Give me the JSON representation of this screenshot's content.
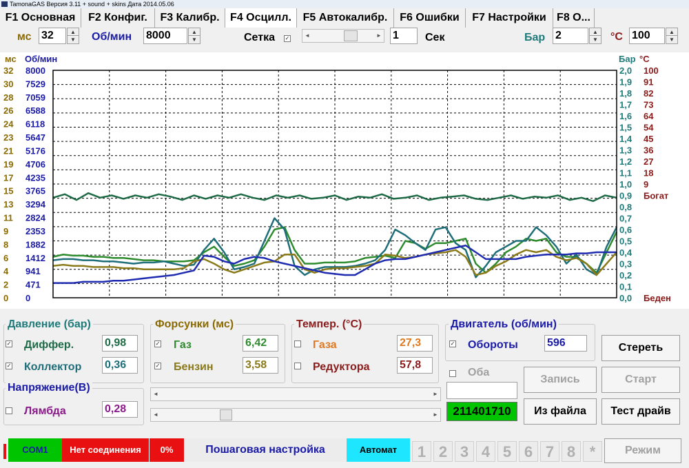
{
  "titlebar": {
    "text": "TamonaGAS  Версия 3.11 + sound + skins  Дата 2014.05.06"
  },
  "tabs": [
    "F1 Основная",
    "F2 Конфиг.",
    "F3 Калибр.",
    "F4 Осцилл.",
    "F5 Автокалибр.",
    "F6 Ошибки",
    "F7 Настройки",
    "F8 О..."
  ],
  "toolbar": {
    "ms_label": "мс",
    "ms_value": "32",
    "rpm_label": "Об/мин",
    "rpm_value": "8000",
    "grid_label": "Сетка",
    "grid_checked": "✓",
    "sec_value": "1",
    "sec_label": "Сек",
    "bar_label": "Бар",
    "bar_value": "2",
    "temp_label": "°C",
    "temp_value": "100"
  },
  "chart_data": {
    "type": "line",
    "axes": {
      "ms": {
        "title": "мс",
        "ticks": [
          "32",
          "30",
          "28",
          "26",
          "24",
          "23",
          "21",
          "19",
          "17",
          "15",
          "13",
          "11",
          "9",
          "8",
          "6",
          "4",
          "2",
          "0"
        ],
        "color": "#8a6a00"
      },
      "rpm": {
        "title": "Об/мин",
        "ticks": [
          "8000",
          "7529",
          "7059",
          "6588",
          "6118",
          "5647",
          "5176",
          "4706",
          "4235",
          "3765",
          "3294",
          "2824",
          "2353",
          "1882",
          "1412",
          "941",
          "471",
          "0"
        ],
        "color": "#1a1aa8"
      },
      "bar": {
        "title": "Бар",
        "ticks": [
          "2,0",
          "1,9",
          "1,8",
          "1,7",
          "1,6",
          "1,5",
          "1,4",
          "1,3",
          "1,2",
          "1,1",
          "1,0",
          "0,9",
          "0,8",
          "0,7",
          "0,6",
          "0,5",
          "0,4",
          "0,3",
          "0,2",
          "0,1",
          "0,0"
        ],
        "color": "#1f7a7a"
      },
      "temp": {
        "title": "°C",
        "ticks": [
          "100",
          "91",
          "82",
          "73",
          "64",
          "54",
          "45",
          "36",
          "27",
          "18",
          "9",
          "Богат",
          "",
          "",
          "",
          "",
          "",
          "",
          "",
          "",
          "Беден"
        ],
        "color": "#8b1a1a"
      }
    },
    "grid": true,
    "series": [
      {
        "color": "#1f6b47",
        "values": [
          0.88,
          0.91,
          0.86,
          0.92,
          0.88,
          0.9,
          0.87,
          0.9,
          0.88,
          0.91,
          0.89,
          0.86,
          0.9,
          0.87,
          0.9,
          0.88,
          0.91,
          0.88,
          0.86,
          0.9,
          0.88,
          0.9,
          0.87,
          0.88,
          0.9,
          0.86,
          0.89,
          0.88,
          0.91,
          0.87,
          0.88,
          0.9,
          0.86,
          0.88,
          0.89,
          0.9,
          0.87,
          0.86,
          0.88,
          0.9,
          0.87,
          0.89,
          0.88,
          0.9,
          0.86,
          0.88,
          0.85,
          0.9,
          0.88
        ]
      },
      {
        "color": "#2e8b2e",
        "values": [
          0.36,
          0.38,
          0.37,
          0.37,
          0.36,
          0.36,
          0.35,
          0.35,
          0.34,
          0.33,
          0.33,
          0.32,
          0.32,
          0.32,
          0.33,
          0.4,
          0.45,
          0.36,
          0.28,
          0.3,
          0.33,
          0.45,
          0.6,
          0.62,
          0.42,
          0.3,
          0.3,
          0.31,
          0.31,
          0.31,
          0.32,
          0.35,
          0.36,
          0.37,
          0.35,
          0.5,
          0.48,
          0.43,
          0.48,
          0.48,
          0.5,
          0.52,
          0.3,
          0.22,
          0.3,
          0.4,
          0.45,
          0.52,
          0.5,
          0.52,
          0.4,
          0.36,
          0.36,
          0.3,
          0.22,
          0.4,
          0.58
        ]
      },
      {
        "color": "#1e6e7a",
        "values": [
          0.33,
          0.34,
          0.34,
          0.33,
          0.33,
          0.32,
          0.32,
          0.31,
          0.3,
          0.31,
          0.31,
          0.32,
          0.3,
          0.28,
          0.29,
          0.42,
          0.52,
          0.4,
          0.25,
          0.27,
          0.3,
          0.5,
          0.7,
          0.6,
          0.28,
          0.2,
          0.25,
          0.27,
          0.27,
          0.27,
          0.28,
          0.3,
          0.33,
          0.42,
          0.6,
          0.55,
          0.48,
          0.42,
          0.6,
          0.62,
          0.48,
          0.42,
          0.18,
          0.28,
          0.4,
          0.45,
          0.5,
          0.5,
          0.62,
          0.55,
          0.45,
          0.3,
          0.38,
          0.25,
          0.2,
          0.45,
          0.62
        ]
      },
      {
        "color": "#8a7a1a",
        "values": [
          0.28,
          0.29,
          0.28,
          0.28,
          0.27,
          0.27,
          0.27,
          0.26,
          0.26,
          0.25,
          0.25,
          0.25,
          0.25,
          0.26,
          0.32,
          0.34,
          0.3,
          0.25,
          0.22,
          0.25,
          0.28,
          0.31,
          0.32,
          0.38,
          0.38,
          0.25,
          0.22,
          0.25,
          0.26,
          0.26,
          0.27,
          0.28,
          0.3,
          0.38,
          0.37,
          0.35,
          0.36,
          0.38,
          0.39,
          0.4,
          0.42,
          0.36,
          0.2,
          0.22,
          0.28,
          0.32,
          0.38,
          0.42,
          0.4,
          0.42,
          0.36,
          0.33,
          0.35,
          0.3,
          0.2,
          0.3,
          0.4
        ]
      },
      {
        "color": "#1f2bb0",
        "values": [
          0.13,
          0.13,
          0.13,
          0.14,
          0.14,
          0.14,
          0.15,
          0.15,
          0.16,
          0.17,
          0.18,
          0.19,
          0.2,
          0.22,
          0.24,
          0.37,
          0.36,
          0.32,
          0.3,
          0.34,
          0.36,
          0.35,
          0.32,
          0.3,
          0.28,
          0.26,
          0.24,
          0.22,
          0.21,
          0.2,
          0.2,
          0.25,
          0.3,
          0.33,
          0.34,
          0.34,
          0.36,
          0.38,
          0.4,
          0.42,
          0.44,
          0.46,
          0.4,
          0.34,
          0.34,
          0.34,
          0.34,
          0.36,
          0.37,
          0.38,
          0.38,
          0.38,
          0.39,
          0.39,
          0.4,
          0.4,
          0.4
        ]
      }
    ]
  },
  "pressure": {
    "title": "Давление (бар)",
    "r1_label": "Диффер.",
    "r1_value": "0,98",
    "r2_label": "Коллектор",
    "r2_value": "0,36"
  },
  "injectors": {
    "title": "Форсунки (мс)",
    "r1_label": "Газ",
    "r1_value": "6,42",
    "r2_label": "Бензин",
    "r2_value": "3,58"
  },
  "temps": {
    "title": "Темпер. (°C)",
    "r1_label": "Газа",
    "r1_value": "27,3",
    "r2_label": "Редуктора",
    "r2_value": "57,8"
  },
  "engine": {
    "title": "Двигатель (об/мин)",
    "r1_label": "Обороты",
    "r1_value": "596",
    "both_label": "Оба"
  },
  "voltage": {
    "title": "Напряжение(В)",
    "r1_label": "Лямбда",
    "r1_value": "0,28"
  },
  "buttons": {
    "clear": "Стереть",
    "record": "Запись",
    "start": "Старт",
    "from_file": "Из файла",
    "test_drive": "Тест драйв",
    "mode": "Режим"
  },
  "serial": "211401710",
  "statusbar": {
    "com": "COM1",
    "conn": "Нет соединения",
    "percent": "0%",
    "step": "Пошаговая настройка",
    "auto": "Автомат",
    "nums": [
      "1",
      "2",
      "3",
      "4",
      "5",
      "6",
      "7",
      "8",
      "*"
    ]
  },
  "colors": {
    "ms": "#8a6a00",
    "rpm": "#1a1aa8",
    "bar": "#1f7a7a",
    "temp": "#8b1a1a",
    "green": "#00c400",
    "red": "#e81010",
    "cyan": "#1ee6ff"
  }
}
